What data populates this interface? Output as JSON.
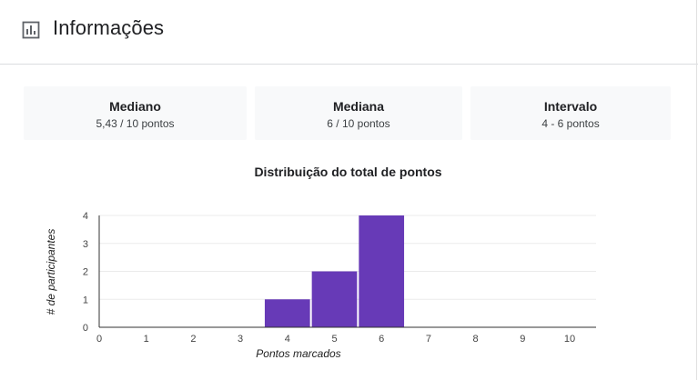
{
  "header": {
    "title": "Informações",
    "icon": "bar-chart-icon"
  },
  "stats": [
    {
      "label": "Mediano",
      "value": "5,43 / 10 pontos"
    },
    {
      "label": "Mediana",
      "value": "6 / 10 pontos"
    },
    {
      "label": "Intervalo",
      "value": "4 - 6 pontos"
    }
  ],
  "chart_data": {
    "type": "bar",
    "title": "Distribuição do total de pontos",
    "xlabel": "Pontos marcados",
    "ylabel": "# de participantes",
    "x": [
      0,
      1,
      2,
      3,
      4,
      5,
      6,
      7,
      8,
      9,
      10
    ],
    "values": [
      0,
      0,
      0,
      0,
      1,
      2,
      4,
      0,
      0,
      0,
      0
    ],
    "xlim": [
      0,
      10.5
    ],
    "ylim": [
      0,
      4
    ],
    "yticks": [
      0,
      1,
      2,
      3,
      4
    ],
    "grid": true,
    "bar_color": "#673ab7"
  }
}
